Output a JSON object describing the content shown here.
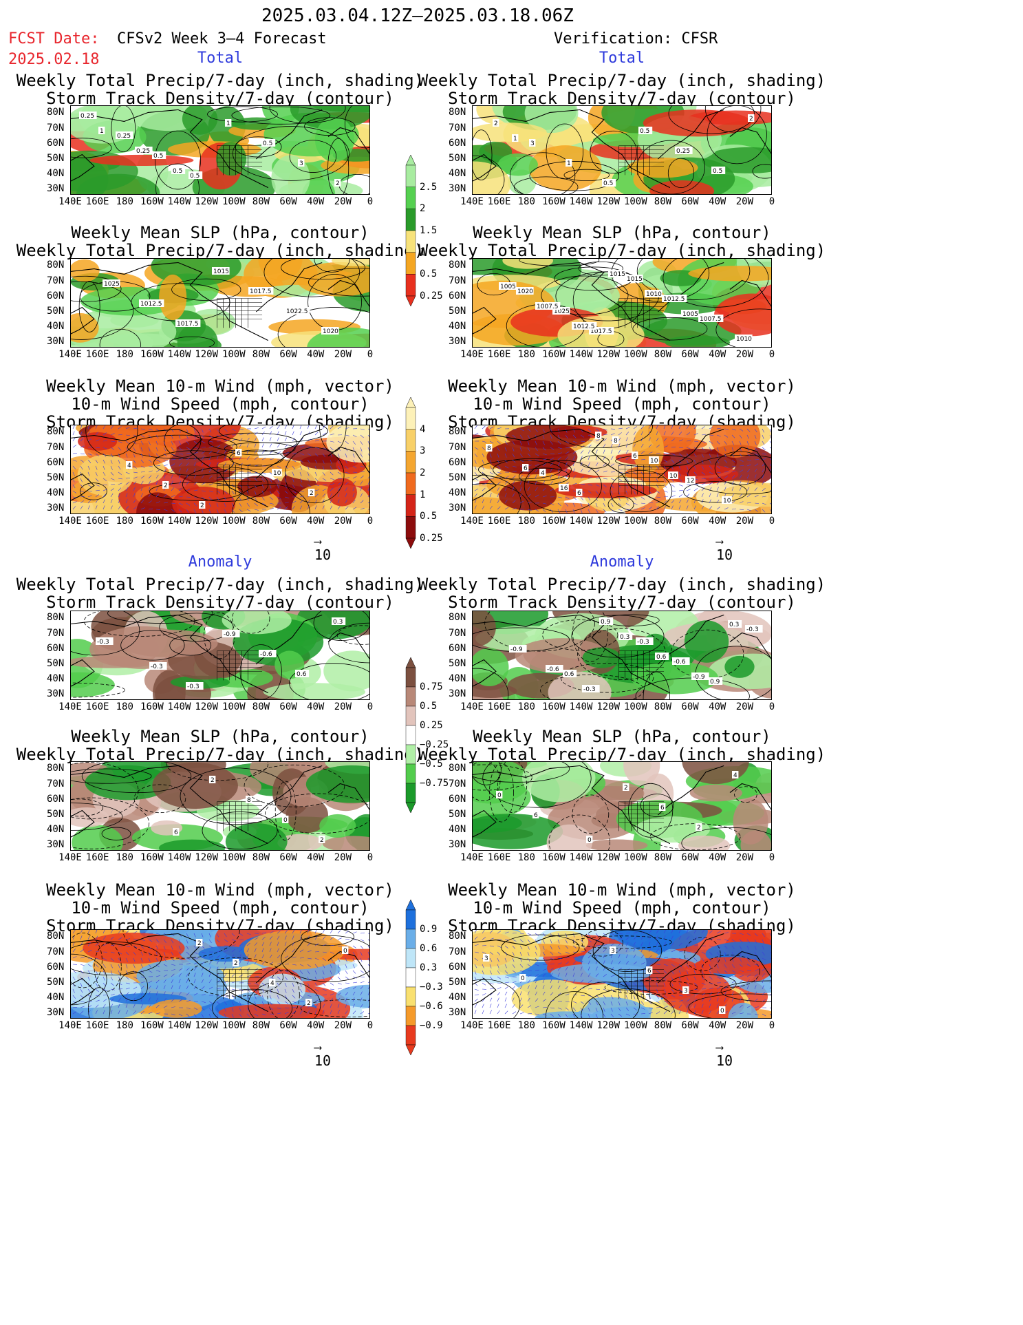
{
  "header": {
    "period": "2025.03.04.12Z–2025.03.18.06Z",
    "fcst_label": "FCST Date:",
    "fcst_date": "2025.02.18",
    "left_model": "CFSv2 Week 3–4 Forecast",
    "right_model": "Verification: CFSR",
    "total_label": "Total",
    "anomaly_label": "Anomaly"
  },
  "axes": {
    "lat_labels": [
      "80N",
      "70N",
      "60N",
      "50N",
      "40N",
      "30N"
    ],
    "lon_labels": [
      "140E",
      "160E",
      "180",
      "160W",
      "140W",
      "120W",
      "100W",
      "80W",
      "60W",
      "40W",
      "20W",
      "0"
    ]
  },
  "panel_titles": {
    "precip_storm": [
      "Weekly Total Precip/7-day (inch, shading)",
      "Storm Track Density/7-day (contour)"
    ],
    "slp_precip": [
      "Weekly Mean SLP (hPa, contour)",
      "Weekly Total Precip/7-day (inch, shading)"
    ],
    "wind_storm": [
      "Weekly Mean 10-m Wind (mph, vector)",
      "10-m Wind Speed (mph, contour)",
      "Storm Track Density/7-day (shading)"
    ]
  },
  "vector_reference": "10",
  "colorbars": {
    "total_precip": {
      "labels": [
        "2.5",
        "2",
        "1.5",
        "1",
        "0.5",
        "0.25"
      ],
      "colors": [
        "#e8301e",
        "#f4a622",
        "#f7e27a",
        "#2a9b2a",
        "#55d050",
        "#a8eca0"
      ]
    },
    "total_storm": {
      "labels": [
        "4",
        "3",
        "2",
        "1",
        "0.5",
        "0.25"
      ],
      "colors": [
        "#8c0c0c",
        "#d42418",
        "#f06a1e",
        "#f4a630",
        "#f8d068",
        "#fdf1b8"
      ]
    },
    "anom_precip": {
      "labels": [
        "0.75",
        "0.5",
        "0.25",
        "−0.25",
        "−0.5",
        "−0.75"
      ],
      "colors": [
        "#1b9a2a",
        "#52cc4c",
        "#b0efa6",
        "#ffffff",
        "#e2c4bc",
        "#b88878",
        "#7c5040"
      ]
    },
    "anom_storm": {
      "labels": [
        "0.9",
        "0.6",
        "0.3",
        "−0.3",
        "−0.6",
        "−0.9"
      ],
      "colors": [
        "#e83a1e",
        "#f59a2a",
        "#f9e070",
        "#ffffff",
        "#bfe6f8",
        "#6aaee8",
        "#1e70dc"
      ]
    }
  },
  "panels": [
    {
      "id": "total-fcst-precip",
      "labels": [
        "0.25",
        "0.25",
        "0.5",
        "0.5",
        "1",
        "0.5",
        "3",
        "2",
        "1",
        "0.25",
        "0.5"
      ],
      "style": "precip"
    },
    {
      "id": "total-verif-precip",
      "labels": [
        "2",
        "3",
        "1",
        "0.5",
        "0.5",
        "0.25",
        "0.5",
        "2",
        "1"
      ],
      "style": "precip"
    },
    {
      "id": "total-fcst-slp",
      "labels": [
        "1025",
        "1012.5",
        "1017.5",
        "1015",
        "1017.5",
        "1022.5",
        "1020"
      ],
      "style": "precip"
    },
    {
      "id": "total-verif-slp",
      "labels": [
        "1020",
        "1025",
        "1017.5",
        "1015",
        "1012.5",
        "1007.5",
        "1010",
        "1005",
        "1007.5",
        "1012.5",
        "1015",
        "1010",
        "1005"
      ],
      "style": "precip"
    },
    {
      "id": "total-fcst-wind",
      "labels": [
        "4",
        "2",
        "2",
        "6",
        "10",
        "2"
      ],
      "style": "storm"
    },
    {
      "id": "total-verif-wind",
      "labels": [
        "4",
        "6",
        "8",
        "10",
        "12",
        "10",
        "8",
        "6",
        "16",
        "8",
        "6",
        "10"
      ],
      "style": "storm"
    },
    {
      "id": "anom-fcst-precip",
      "labels": [
        "-0.3",
        "-0.3",
        "-0.9",
        "-0.6",
        "0.6",
        "0.3",
        "-0.3"
      ],
      "style": "aprecip"
    },
    {
      "id": "anom-verif-precip",
      "labels": [
        "0.6",
        "0.9",
        "-0.3",
        "-0.6",
        "0.9",
        "-0.3",
        "-0.9",
        "-0.6",
        "-0.3",
        "0.3",
        "0.6",
        "-0.9",
        "0.3"
      ],
      "style": "aprecip"
    },
    {
      "id": "anom-fcst-slp",
      "labels": [
        "6",
        "2",
        "8",
        "0",
        "2"
      ],
      "style": "aprecip"
    },
    {
      "id": "anom-verif-slp",
      "labels": [
        "0",
        "2",
        "6",
        "2",
        "4",
        "0",
        "6"
      ],
      "style": "aprecip"
    },
    {
      "id": "anom-fcst-wind",
      "labels": [
        "2",
        "2",
        "4",
        "2",
        "0"
      ],
      "style": "astorm"
    },
    {
      "id": "anom-verif-wind",
      "labels": [
        "3",
        "6",
        "3",
        "0",
        "3",
        "0"
      ],
      "style": "astorm"
    }
  ]
}
